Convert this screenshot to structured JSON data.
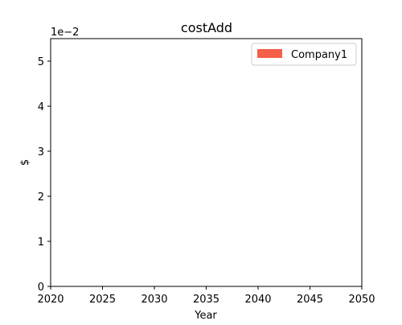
{
  "chart_data": {
    "type": "area",
    "title": "costAdd",
    "xlabel": "Year",
    "ylabel": "$",
    "y_offset_label": "1e−2",
    "xlim": [
      2020,
      2050
    ],
    "ylim": [
      0,
      5.5
    ],
    "x_ticks": [
      2020,
      2025,
      2030,
      2035,
      2040,
      2045,
      2050
    ],
    "y_ticks": [
      0,
      1,
      2,
      3,
      4,
      5
    ],
    "grid": false,
    "legend_position": "top-right",
    "series": [
      {
        "name": "Company1",
        "color": "#f4604a",
        "x": [],
        "values": []
      }
    ]
  }
}
